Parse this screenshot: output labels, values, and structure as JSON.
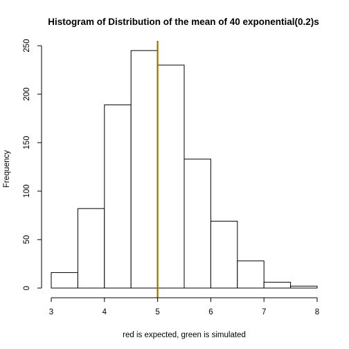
{
  "chart_data": {
    "type": "bar",
    "title": "Histogram of Distribution of the mean of 40 exponential(0.2)s",
    "xlabel": "red is expected, green is simulated",
    "ylabel": "Frequency",
    "bins": [
      {
        "start": 3.0,
        "end": 3.5,
        "count": 16
      },
      {
        "start": 3.5,
        "end": 4.0,
        "count": 82
      },
      {
        "start": 4.0,
        "end": 4.5,
        "count": 189
      },
      {
        "start": 4.5,
        "end": 5.0,
        "count": 245
      },
      {
        "start": 5.0,
        "end": 5.5,
        "count": 230
      },
      {
        "start": 5.5,
        "end": 6.0,
        "count": 133
      },
      {
        "start": 6.0,
        "end": 6.5,
        "count": 69
      },
      {
        "start": 6.5,
        "end": 7.0,
        "count": 28
      },
      {
        "start": 7.0,
        "end": 7.5,
        "count": 6
      },
      {
        "start": 7.5,
        "end": 8.0,
        "count": 2
      }
    ],
    "xlim": [
      3,
      8
    ],
    "ylim": [
      0,
      250
    ],
    "xticks": [
      "3",
      "4",
      "5",
      "6",
      "7",
      "8"
    ],
    "yticks": [
      "0",
      "50",
      "100",
      "150",
      "200",
      "250"
    ],
    "vlines": [
      {
        "x": 5.0,
        "color": "#ff0000",
        "role": "expected"
      },
      {
        "x": 5.0,
        "color": "#7f7f00",
        "role": "simulated"
      }
    ],
    "grid": false,
    "legend": "none"
  }
}
